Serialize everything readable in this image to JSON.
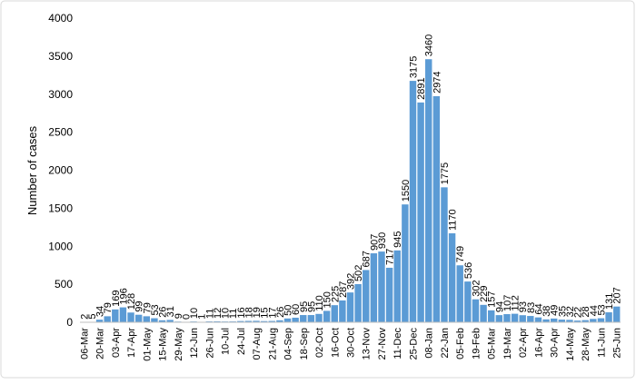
{
  "chart_data": {
    "type": "bar",
    "y_label": "Number of cases",
    "color": "#5b9bd5",
    "categories": [
      "06-Mar",
      null,
      "20-Mar",
      null,
      "03-Apr",
      null,
      "17-Apr",
      null,
      "01-May",
      null,
      "15-May",
      null,
      "29-May",
      null,
      "12-Jun",
      null,
      "26-Jun",
      null,
      "10-Jul",
      null,
      "24-Jul",
      null,
      "07-Aug",
      null,
      "21-Aug",
      null,
      "04-Sep",
      null,
      "18-Sep",
      null,
      "02-Oct",
      null,
      "16-Oct",
      null,
      "30-Oct",
      null,
      "13-Nov",
      null,
      "27-Nov",
      null,
      "11-Dec",
      null,
      "25-Dec",
      null,
      "08-Jan",
      null,
      "22-Jan",
      null,
      "05-Feb",
      null,
      "19-Feb",
      null,
      "05-Mar",
      null,
      "19-Mar",
      null,
      "02-Apr",
      null,
      "16-Apr",
      null,
      "30-Apr",
      null,
      "14-May",
      null,
      "28-May",
      null,
      "11-Jun",
      null,
      "25-Jun"
    ],
    "values": [
      2,
      5,
      34,
      79,
      169,
      196,
      128,
      99,
      79,
      53,
      26,
      31,
      9,
      0,
      10,
      1,
      11,
      12,
      10,
      11,
      16,
      18,
      19,
      15,
      17,
      26,
      50,
      60,
      95,
      95,
      110,
      150,
      225,
      287,
      392,
      502,
      687,
      907,
      930,
      717,
      945,
      1550,
      3175,
      2891,
      3460,
      2974,
      1775,
      1170,
      749,
      536,
      302,
      229,
      157,
      94,
      107,
      112,
      93,
      83,
      64,
      38,
      49,
      35,
      32,
      22,
      28,
      44,
      53,
      131,
      207
    ],
    "ylim": [
      0,
      4000
    ],
    "yticks": [
      0,
      500,
      1000,
      1500,
      2000,
      2500,
      3000,
      3500,
      4000
    ],
    "grid": false
  }
}
